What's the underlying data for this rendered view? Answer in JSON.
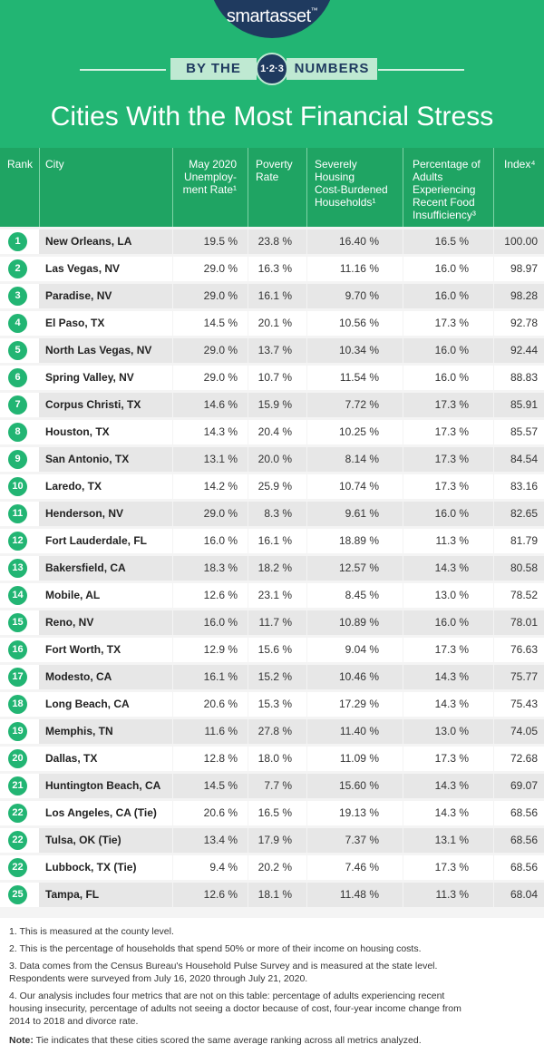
{
  "header": {
    "brand": "smartasset",
    "brand_tm": "™",
    "ribbon_left": "BY THE",
    "badge": "1·2·3",
    "ribbon_right": "NUMBERS",
    "title": "Cities With the Most Financial Stress"
  },
  "columns": {
    "rank": "Rank",
    "city": "City",
    "unemployment": [
      "May 2020",
      "Unemploy-",
      "ment Rate¹"
    ],
    "poverty": [
      "Poverty",
      "Rate"
    ],
    "housing": [
      "Severely",
      "Housing",
      "Cost-Burdened",
      "Households¹"
    ],
    "food": [
      "Percentage of",
      "Adults",
      "Experiencing",
      "Recent Food",
      "Insufficiency³"
    ],
    "index": "Index⁴"
  },
  "rows": [
    {
      "rank": "1",
      "city": "New Orleans, LA",
      "unemployment": "19.5 %",
      "poverty": "23.8 %",
      "housing": "16.40 %",
      "food": "16.5 %",
      "index": "100.00"
    },
    {
      "rank": "2",
      "city": "Las Vegas, NV",
      "unemployment": "29.0 %",
      "poverty": "16.3 %",
      "housing": "11.16 %",
      "food": "16.0 %",
      "index": "98.97"
    },
    {
      "rank": "3",
      "city": "Paradise, NV",
      "unemployment": "29.0 %",
      "poverty": "16.1 %",
      "housing": "9.70 %",
      "food": "16.0 %",
      "index": "98.28"
    },
    {
      "rank": "4",
      "city": "El Paso, TX",
      "unemployment": "14.5 %",
      "poverty": "20.1 %",
      "housing": "10.56 %",
      "food": "17.3 %",
      "index": "92.78"
    },
    {
      "rank": "5",
      "city": "North Las Vegas, NV",
      "unemployment": "29.0 %",
      "poverty": "13.7 %",
      "housing": "10.34 %",
      "food": "16.0 %",
      "index": "92.44"
    },
    {
      "rank": "6",
      "city": "Spring Valley, NV",
      "unemployment": "29.0 %",
      "poverty": "10.7 %",
      "housing": "11.54 %",
      "food": "16.0 %",
      "index": "88.83"
    },
    {
      "rank": "7",
      "city": "Corpus Christi, TX",
      "unemployment": "14.6 %",
      "poverty": "15.9 %",
      "housing": "7.72 %",
      "food": "17.3 %",
      "index": "85.91"
    },
    {
      "rank": "8",
      "city": "Houston, TX",
      "unemployment": "14.3 %",
      "poverty": "20.4 %",
      "housing": "10.25 %",
      "food": "17.3 %",
      "index": "85.57"
    },
    {
      "rank": "9",
      "city": "San Antonio, TX",
      "unemployment": "13.1 %",
      "poverty": "20.0 %",
      "housing": "8.14 %",
      "food": "17.3 %",
      "index": "84.54"
    },
    {
      "rank": "10",
      "city": "Laredo, TX",
      "unemployment": "14.2 %",
      "poverty": "25.9 %",
      "housing": "10.74 %",
      "food": "17.3 %",
      "index": "83.16"
    },
    {
      "rank": "11",
      "city": "Henderson, NV",
      "unemployment": "29.0 %",
      "poverty": "8.3 %",
      "housing": "9.61 %",
      "food": "16.0 %",
      "index": "82.65"
    },
    {
      "rank": "12",
      "city": "Fort Lauderdale, FL",
      "unemployment": "16.0 %",
      "poverty": "16.1 %",
      "housing": "18.89 %",
      "food": "11.3 %",
      "index": "81.79"
    },
    {
      "rank": "13",
      "city": "Bakersfield, CA",
      "unemployment": "18.3 %",
      "poverty": "18.2 %",
      "housing": "12.57 %",
      "food": "14.3 %",
      "index": "80.58"
    },
    {
      "rank": "14",
      "city": "Mobile, AL",
      "unemployment": "12.6 %",
      "poverty": "23.1 %",
      "housing": "8.45 %",
      "food": "13.0 %",
      "index": "78.52"
    },
    {
      "rank": "15",
      "city": "Reno, NV",
      "unemployment": "16.0 %",
      "poverty": "11.7 %",
      "housing": "10.89 %",
      "food": "16.0 %",
      "index": "78.01"
    },
    {
      "rank": "16",
      "city": "Fort Worth, TX",
      "unemployment": "12.9 %",
      "poverty": "15.6 %",
      "housing": "9.04 %",
      "food": "17.3 %",
      "index": "76.63"
    },
    {
      "rank": "17",
      "city": "Modesto, CA",
      "unemployment": "16.1 %",
      "poverty": "15.2 %",
      "housing": "10.46 %",
      "food": "14.3 %",
      "index": "75.77"
    },
    {
      "rank": "18",
      "city": "Long Beach, CA",
      "unemployment": "20.6 %",
      "poverty": "15.3 %",
      "housing": "17.29 %",
      "food": "14.3 %",
      "index": "75.43"
    },
    {
      "rank": "19",
      "city": "Memphis, TN",
      "unemployment": "11.6 %",
      "poverty": "27.8 %",
      "housing": "11.40 %",
      "food": "13.0 %",
      "index": "74.05"
    },
    {
      "rank": "20",
      "city": "Dallas, TX",
      "unemployment": "12.8 %",
      "poverty": "18.0 %",
      "housing": "11.09 %",
      "food": "17.3 %",
      "index": "72.68"
    },
    {
      "rank": "21",
      "city": "Huntington Beach, CA",
      "unemployment": "14.5 %",
      "poverty": "7.7 %",
      "housing": "15.60 %",
      "food": "14.3 %",
      "index": "69.07"
    },
    {
      "rank": "22",
      "city": "Los Angeles, CA (Tie)",
      "unemployment": "20.6 %",
      "poverty": "16.5 %",
      "housing": "19.13 %",
      "food": "14.3 %",
      "index": "68.56"
    },
    {
      "rank": "22",
      "city": "Tulsa, OK (Tie)",
      "unemployment": "13.4 %",
      "poverty": "17.9 %",
      "housing": "7.37 %",
      "food": "13.1 %",
      "index": "68.56"
    },
    {
      "rank": "22",
      "city": "Lubbock, TX (Tie)",
      "unemployment": "9.4 %",
      "poverty": "20.2 %",
      "housing": "7.46 %",
      "food": "17.3 %",
      "index": "68.56"
    },
    {
      "rank": "25",
      "city": "Tampa, FL",
      "unemployment": "12.6 %",
      "poverty": "18.1 %",
      "housing": "11.48 %",
      "food": "11.3 %",
      "index": "68.04"
    }
  ],
  "footnotes": [
    "1. This is measured at the county level.",
    "2. This is the percentage of households that spend 50% or more of their income on housing costs.",
    "3. Data comes from the Census Bureau's Household Pulse Survey and is measured at the state level.",
    "Respondents were surveyed from July 16, 2020 through July 21, 2020.",
    "4. Our analysis includes four metrics that are not on this table: percentage of adults experiencing recent",
    "housing insecurity, percentage of adults not seeing a doctor because of cost, four-year income change from",
    "2014 to 2018 and divorce rate."
  ],
  "note": {
    "label": "Note:",
    "text": " Tie indicates that these cities scored the same average ranking across all metrics analyzed."
  }
}
